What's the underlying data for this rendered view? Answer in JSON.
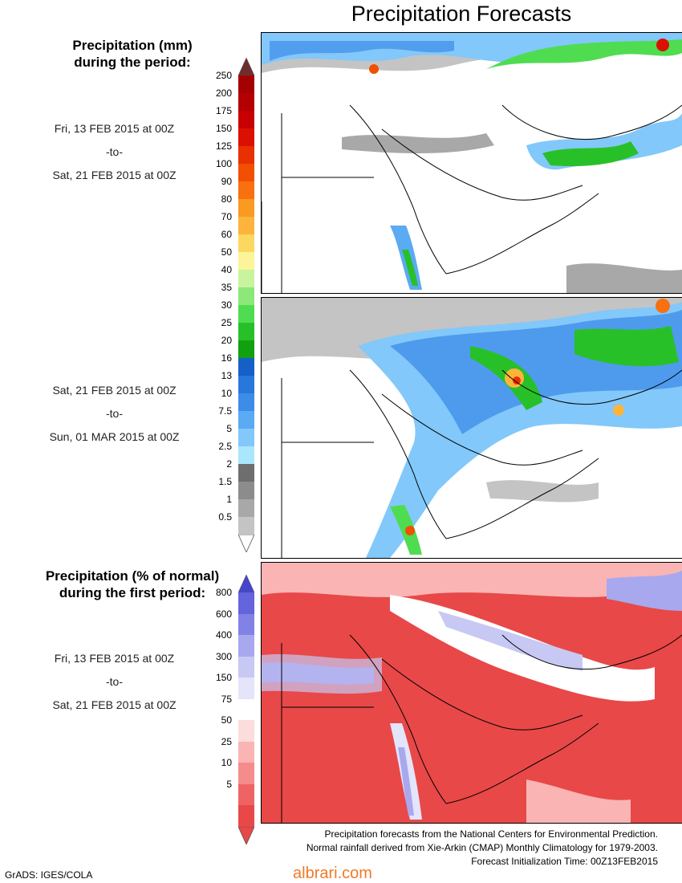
{
  "title": "Precipitation Forecasts",
  "precip_mm": {
    "heading": [
      "Precipitation (mm)",
      "during the period:"
    ],
    "legend_values": [
      "250",
      "200",
      "175",
      "150",
      "125",
      "100",
      "90",
      "80",
      "70",
      "60",
      "50",
      "40",
      "35",
      "30",
      "25",
      "20",
      "16",
      "13",
      "10",
      "7.5",
      "5",
      "2.5",
      "2",
      "1.5",
      "1",
      "0.5"
    ],
    "legend_colors": [
      "#a40000",
      "#b40000",
      "#c80000",
      "#dc1000",
      "#e83000",
      "#f05000",
      "#f87010",
      "#fa9a20",
      "#fcb43c",
      "#fcd860",
      "#fcf498",
      "#c8f4a0",
      "#8ce878",
      "#50dc50",
      "#28c028",
      "#10a010",
      "#1460c8",
      "#2878dc",
      "#3c8ce8",
      "#5aaaf4",
      "#82c8fa",
      "#aae6fc",
      "#6e6e6e",
      "#8c8c8c",
      "#a8a8a8",
      "#c4c4c4"
    ],
    "top_arrow_color": "#6e2e2e"
  },
  "periods": [
    {
      "start": "Fri, 13 FEB 2015 at 00Z",
      "sep": "-to-",
      "end": "Sat, 21 FEB 2015 at 00Z"
    },
    {
      "start": "Sat, 21 FEB 2015 at 00Z",
      "sep": "-to-",
      "end": "Sun, 01 MAR 2015 at 00Z"
    },
    {
      "start": "Fri, 13 FEB 2015 at 00Z",
      "sep": "-to-",
      "end": "Sat, 21 FEB 2015 at 00Z"
    }
  ],
  "pct_normal": {
    "heading": [
      "Precipitation (% of normal)",
      "during the first period:"
    ],
    "legend_values": [
      "800",
      "600",
      "400",
      "300",
      "150",
      "75",
      "50",
      "25",
      "10",
      "5"
    ],
    "legend_colors": [
      "#6464dc",
      "#8282e6",
      "#a8a8ee",
      "#c8c8f4",
      "#e4e4fa",
      "#ffffff",
      "#fcdcdc",
      "#fab4b4",
      "#f48c8c",
      "#ee6464",
      "#e84848"
    ],
    "top_arrow_color": "#4646c8",
    "bottom_arrow_color": "#e84848"
  },
  "footer": [
    "Precipitation forecasts from the National Centers for Environmental Prediction.",
    "Normal rainfall derived from Xie-Arkin (CMAP) Monthly Climatology for 1979-2003.",
    "Forecast Initialization Time: 00Z13FEB2015"
  ],
  "credit": "GrADS: IGES/COLA",
  "watermark": "albrari.com"
}
